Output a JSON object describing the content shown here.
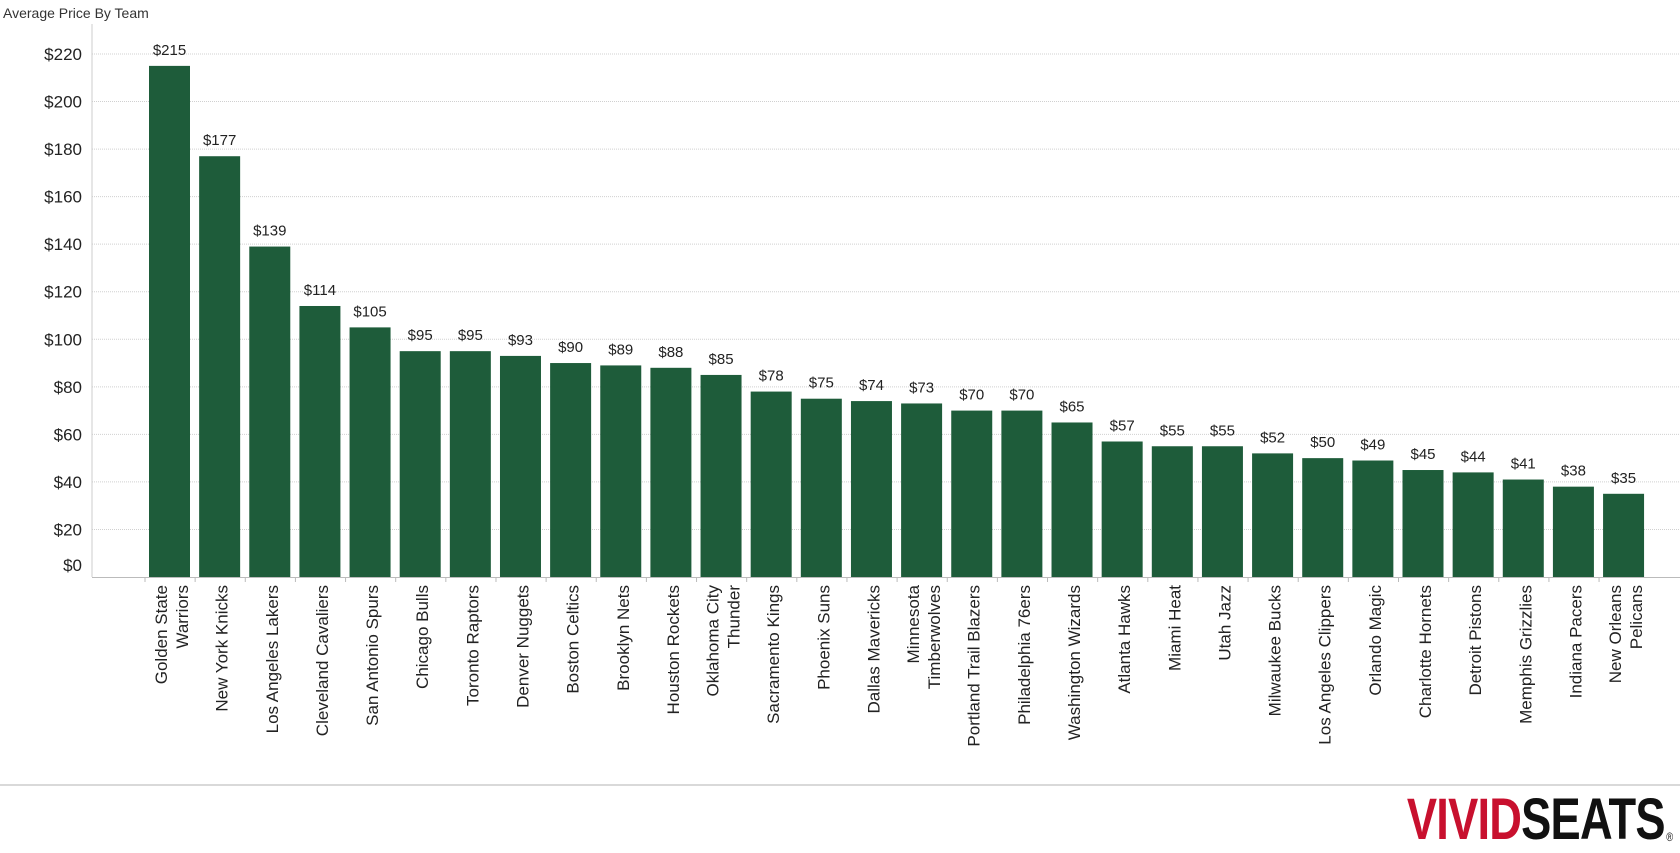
{
  "chart_data": {
    "type": "bar",
    "title": "Average Price By Team",
    "xlabel": "",
    "ylabel": "",
    "ylim": [
      0,
      220
    ],
    "yticks": [
      "$220",
      "$200",
      "$180",
      "$160",
      "$140",
      "$120",
      "$100",
      "$80",
      "$60",
      "$40",
      "$20",
      "$0"
    ],
    "grid": true,
    "bar_color": "#1e5c3a",
    "categories": [
      "Golden State Warriors",
      "New York Knicks",
      "Los Angeles Lakers",
      "Cleveland Cavaliers",
      "San Antonio Spurs",
      "Chicago Bulls",
      "Toronto Raptors",
      "Denver Nuggets",
      "Boston Celtics",
      "Brooklyn Nets",
      "Houston Rockets",
      "Oklahoma City Thunder",
      "Sacramento Kings",
      "Phoenix Suns",
      "Dallas Mavericks",
      "Minnesota Timberwolves",
      "Portland Trail Blazers",
      "Philadelphia 76ers",
      "Washington Wizards",
      "Atlanta Hawks",
      "Miami Heat",
      "Utah Jazz",
      "Milwaukee Bucks",
      "Los Angeles Clippers",
      "Orlando Magic",
      "Charlotte Hornets",
      "Detroit Pistons",
      "Memphis Grizzlies",
      "Indiana Pacers",
      "New Orleans Pelicans"
    ],
    "category_lines": [
      [
        "Golden State",
        "Warriors"
      ],
      [
        "New York Knicks"
      ],
      [
        "Los Angeles Lakers"
      ],
      [
        "Cleveland Cavaliers"
      ],
      [
        "San Antonio Spurs"
      ],
      [
        "Chicago Bulls"
      ],
      [
        "Toronto Raptors"
      ],
      [
        "Denver Nuggets"
      ],
      [
        "Boston Celtics"
      ],
      [
        "Brooklyn Nets"
      ],
      [
        "Houston Rockets"
      ],
      [
        "Oklahoma City",
        "Thunder"
      ],
      [
        "Sacramento Kings"
      ],
      [
        "Phoenix Suns"
      ],
      [
        "Dallas Mavericks"
      ],
      [
        "Minnesota",
        "Timberwolves"
      ],
      [
        "Portland Trail Blazers"
      ],
      [
        "Philadelphia 76ers"
      ],
      [
        "Washington Wizards"
      ],
      [
        "Atlanta Hawks"
      ],
      [
        "Miami Heat"
      ],
      [
        "Utah Jazz"
      ],
      [
        "Milwaukee Bucks"
      ],
      [
        "Los Angeles Clippers"
      ],
      [
        "Orlando Magic"
      ],
      [
        "Charlotte Hornets"
      ],
      [
        "Detroit Pistons"
      ],
      [
        "Memphis Grizzlies"
      ],
      [
        "Indiana Pacers"
      ],
      [
        "New Orleans",
        "Pelicans"
      ]
    ],
    "values": [
      215,
      177,
      139,
      114,
      105,
      95,
      95,
      93,
      90,
      89,
      88,
      85,
      78,
      75,
      74,
      73,
      70,
      70,
      65,
      57,
      55,
      55,
      52,
      50,
      49,
      45,
      44,
      41,
      38,
      35
    ],
    "value_labels": [
      "$215",
      "$177",
      "$139",
      "$114",
      "$105",
      "$95",
      "$95",
      "$93",
      "$90",
      "$89",
      "$88",
      "$85",
      "$78",
      "$75",
      "$74",
      "$73",
      "$70",
      "$70",
      "$65",
      "$57",
      "$55",
      "$55",
      "$52",
      "$50",
      "$49",
      "$45",
      "$44",
      "$41",
      "$38",
      "$35"
    ]
  },
  "branding": {
    "logo_part_1": "VIVID",
    "logo_part_2": "SEATS",
    "logo_mark": "®",
    "logo_color_1": "#c8102e",
    "logo_color_2": "#111111"
  }
}
